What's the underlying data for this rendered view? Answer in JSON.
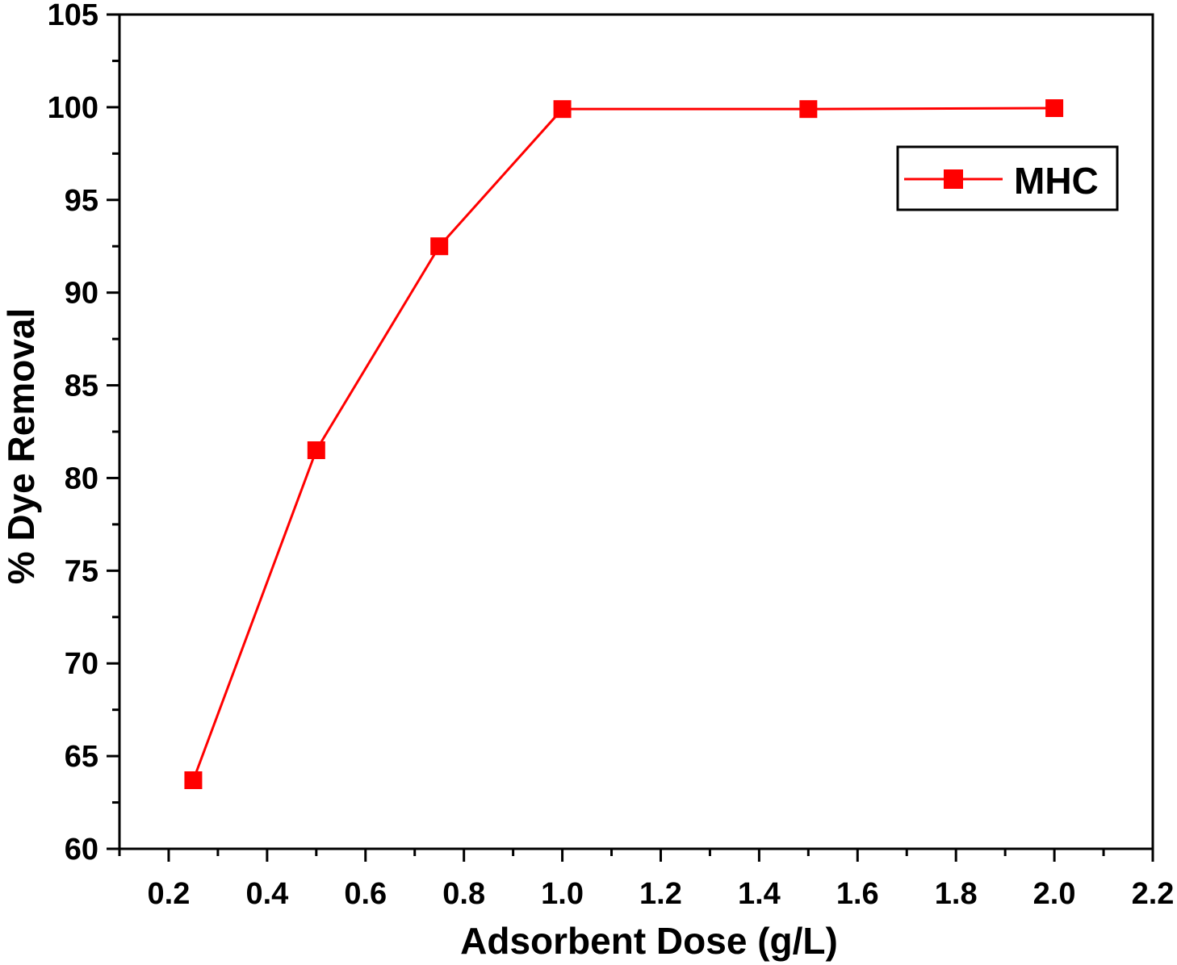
{
  "chart_data": {
    "type": "line",
    "title": "",
    "xlabel": "Adsorbent Dose (g/L)",
    "ylabel": "% Dye Removal",
    "xlim": [
      0.1,
      2.2
    ],
    "ylim": [
      60,
      105
    ],
    "x_major_ticks": [
      0.2,
      0.4,
      0.6,
      0.8,
      1.0,
      1.2,
      1.4,
      1.6,
      1.8,
      2.0,
      2.2
    ],
    "x_tick_labels": [
      "0.2",
      "0.4",
      "0.6",
      "0.8",
      "1.0",
      "1.2",
      "1.4",
      "1.6",
      "1.8",
      "2.0",
      "2.2"
    ],
    "y_major_ticks": [
      60,
      65,
      70,
      75,
      80,
      85,
      90,
      95,
      100,
      105
    ],
    "y_tick_labels": [
      "60",
      "65",
      "70",
      "75",
      "80",
      "85",
      "90",
      "95",
      "100",
      "105"
    ],
    "grid": false,
    "legend_position": "top-right",
    "series": [
      {
        "name": "MHC",
        "color": "#ff0000",
        "marker": "square",
        "x": [
          0.25,
          0.5,
          0.75,
          1.0,
          1.5,
          2.0
        ],
        "y": [
          63.7,
          81.5,
          92.5,
          99.9,
          99.9,
          99.95
        ]
      }
    ]
  }
}
